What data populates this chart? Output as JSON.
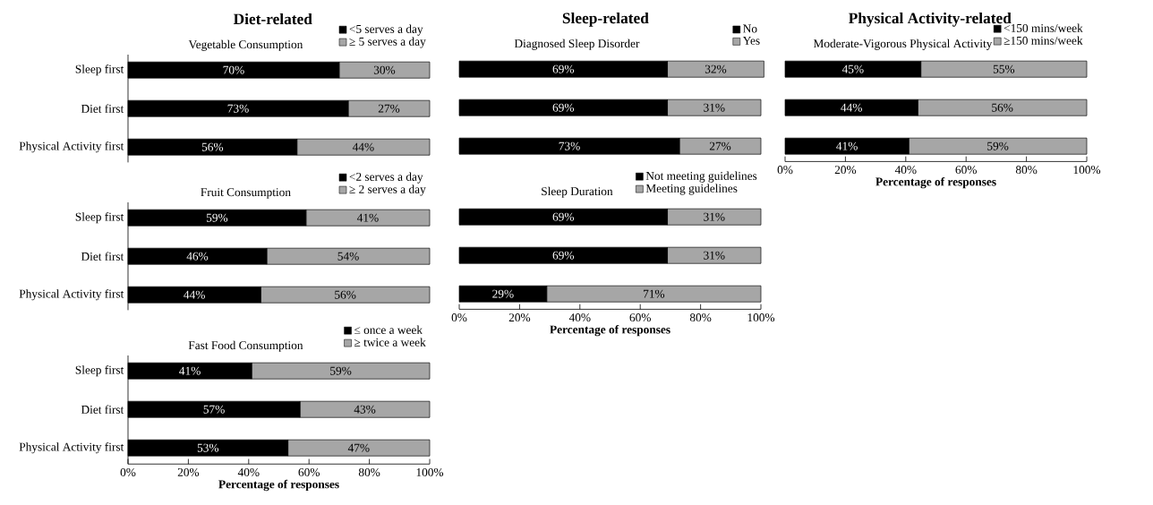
{
  "chart_data": [
    {
      "type": "bar",
      "orientation": "horizontal",
      "stacked": true,
      "title": "Diet-related",
      "subtitle": "Vegetable Consumption",
      "categories": [
        "Sleep first",
        "Diet first",
        "Physical Activity first"
      ],
      "xlim": [
        0,
        100
      ],
      "legend": "top right",
      "tick_labels": "y",
      "series": [
        {
          "name": "<5 serves a day",
          "color": "#000000",
          "values": [
            70,
            73,
            56
          ],
          "value_labels": [
            "70%",
            "73%",
            "56%"
          ]
        },
        {
          "name": "≥ 5 serves a day",
          "color": "#a6a6a6",
          "values": [
            30,
            27,
            44
          ],
          "value_labels": [
            "30%",
            "27%",
            "44%"
          ]
        }
      ]
    },
    {
      "type": "bar",
      "orientation": "horizontal",
      "stacked": true,
      "subtitle": "Fruit Consumption",
      "categories": [
        "Sleep first",
        "Diet first",
        "Physical Activity first"
      ],
      "xlim": [
        0,
        100
      ],
      "legend": "top right",
      "tick_labels": "y",
      "series": [
        {
          "name": "<2 serves a day",
          "color": "#000000",
          "values": [
            59,
            46,
            44
          ],
          "value_labels": [
            "59%",
            "46%",
            "44%"
          ]
        },
        {
          "name": "≥ 2 serves a day",
          "color": "#a6a6a6",
          "values": [
            41,
            54,
            56
          ],
          "value_labels": [
            "41%",
            "54%",
            "56%"
          ]
        }
      ]
    },
    {
      "type": "bar",
      "orientation": "horizontal",
      "stacked": true,
      "subtitle": "Fast Food Consumption",
      "categories": [
        "Sleep first",
        "Diet first",
        "Physical Activity first"
      ],
      "xlim": [
        0,
        100
      ],
      "xlabel": "Percentage of responses",
      "legend": "top right",
      "xticks": [
        {
          "value": 0,
          "label": "0%"
        },
        {
          "value": 20,
          "label": "20%"
        },
        {
          "value": 40,
          "label": "40%"
        },
        {
          "value": 60,
          "label": "60%"
        },
        {
          "value": 80,
          "label": "80%"
        },
        {
          "value": 100,
          "label": "100%"
        }
      ],
      "series": [
        {
          "name": "≤ once a week",
          "color": "#000000",
          "values": [
            41,
            57,
            53
          ],
          "value_labels": [
            "41%",
            "57%",
            "53%"
          ]
        },
        {
          "name": "≥ twice a week",
          "color": "#a6a6a6",
          "values": [
            59,
            43,
            47
          ],
          "value_labels": [
            "59%",
            "43%",
            "47%"
          ]
        }
      ]
    },
    {
      "type": "bar",
      "orientation": "horizontal",
      "stacked": true,
      "title": "Sleep-related",
      "subtitle": "Diagnosed Sleep Disorder",
      "categories": [
        null,
        null,
        null
      ],
      "xlim": [
        0,
        101
      ],
      "legend": "top right",
      "tick_labels": false,
      "series": [
        {
          "name": "No",
          "color": "#000000",
          "values": [
            69,
            69,
            73
          ],
          "value_labels": [
            "69%",
            "69%",
            "73%"
          ]
        },
        {
          "name": "Yes",
          "color": "#a6a6a6",
          "values": [
            32,
            31,
            27
          ],
          "value_labels": [
            "32%",
            "31%",
            "27%"
          ]
        }
      ]
    },
    {
      "type": "bar",
      "orientation": "horizontal",
      "stacked": true,
      "subtitle": "Sleep Duration",
      "categories": [
        null,
        null,
        null
      ],
      "xlim": [
        0,
        100
      ],
      "xlabel": "Percentage of responses",
      "legend": "top right",
      "tick_labels": "x",
      "xticks": [
        {
          "value": 0,
          "label": "0%"
        },
        {
          "value": 20,
          "label": "20%"
        },
        {
          "value": 40,
          "label": "40%"
        },
        {
          "value": 60,
          "label": "60%"
        },
        {
          "value": 80,
          "label": "80%"
        },
        {
          "value": 100,
          "label": "100%"
        }
      ],
      "series": [
        {
          "name": "Not meeting guidelines",
          "color": "#000000",
          "values": [
            69,
            69,
            29
          ],
          "value_labels": [
            "69%",
            "69%",
            "29%"
          ]
        },
        {
          "name": "Meeting guidelines",
          "color": "#a6a6a6",
          "values": [
            31,
            31,
            71
          ],
          "value_labels": [
            "31%",
            "31%",
            "71%"
          ]
        }
      ]
    },
    {
      "type": "bar",
      "orientation": "horizontal",
      "stacked": true,
      "title": "Physical Activity-related",
      "subtitle": "Moderate-Vigorous Physical Activity",
      "categories": [
        null,
        null,
        null
      ],
      "xlim": [
        0,
        100
      ],
      "xlabel": "Percentage of responses",
      "legend": "top right",
      "tick_labels": "x",
      "xticks": [
        {
          "value": 0,
          "label": "0%"
        },
        {
          "value": 20,
          "label": "20%"
        },
        {
          "value": 40,
          "label": "40%"
        },
        {
          "value": 60,
          "label": "60%"
        },
        {
          "value": 80,
          "label": "80%"
        },
        {
          "value": 100,
          "label": "100%"
        }
      ],
      "series": [
        {
          "name": "<150 mins/week",
          "color": "#000000",
          "values": [
            45,
            44,
            41
          ],
          "value_labels": [
            "45%",
            "44%",
            "41%"
          ]
        },
        {
          "name": "≥150 mins/week",
          "color": "#a6a6a6",
          "values": [
            55,
            56,
            59
          ],
          "value_labels": [
            "55%",
            "56%",
            "59%"
          ]
        }
      ]
    }
  ]
}
